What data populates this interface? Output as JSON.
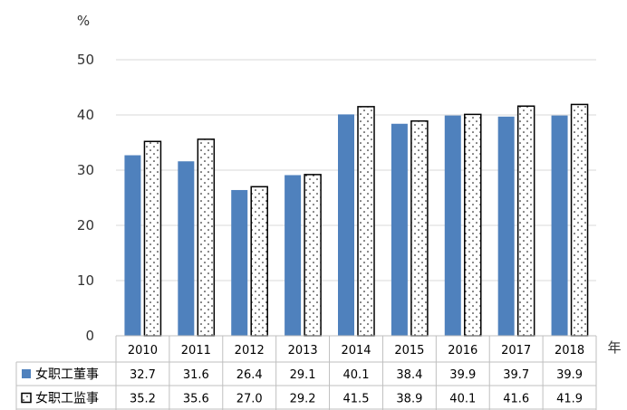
{
  "chart_data": {
    "type": "bar",
    "ylabel": "%",
    "xlabel": "年",
    "ylim": [
      0,
      50
    ],
    "yticks": [
      0,
      10,
      20,
      30,
      40,
      50
    ],
    "grid": true,
    "legend": "table-rows-below",
    "categories": [
      "2010",
      "2011",
      "2012",
      "2013",
      "2014",
      "2015",
      "2016",
      "2017",
      "2018"
    ],
    "series": [
      {
        "name": "女职工董事",
        "values": [
          32.7,
          31.6,
          26.4,
          29.1,
          40.1,
          38.4,
          39.9,
          39.7,
          39.9
        ],
        "color": "#4f81bd",
        "pattern": "solid"
      },
      {
        "name": "女职工监事",
        "values": [
          35.2,
          35.6,
          27.0,
          29.2,
          41.5,
          38.9,
          40.1,
          41.6,
          41.9
        ],
        "color": "#ffffff",
        "pattern": "dotted"
      }
    ]
  }
}
